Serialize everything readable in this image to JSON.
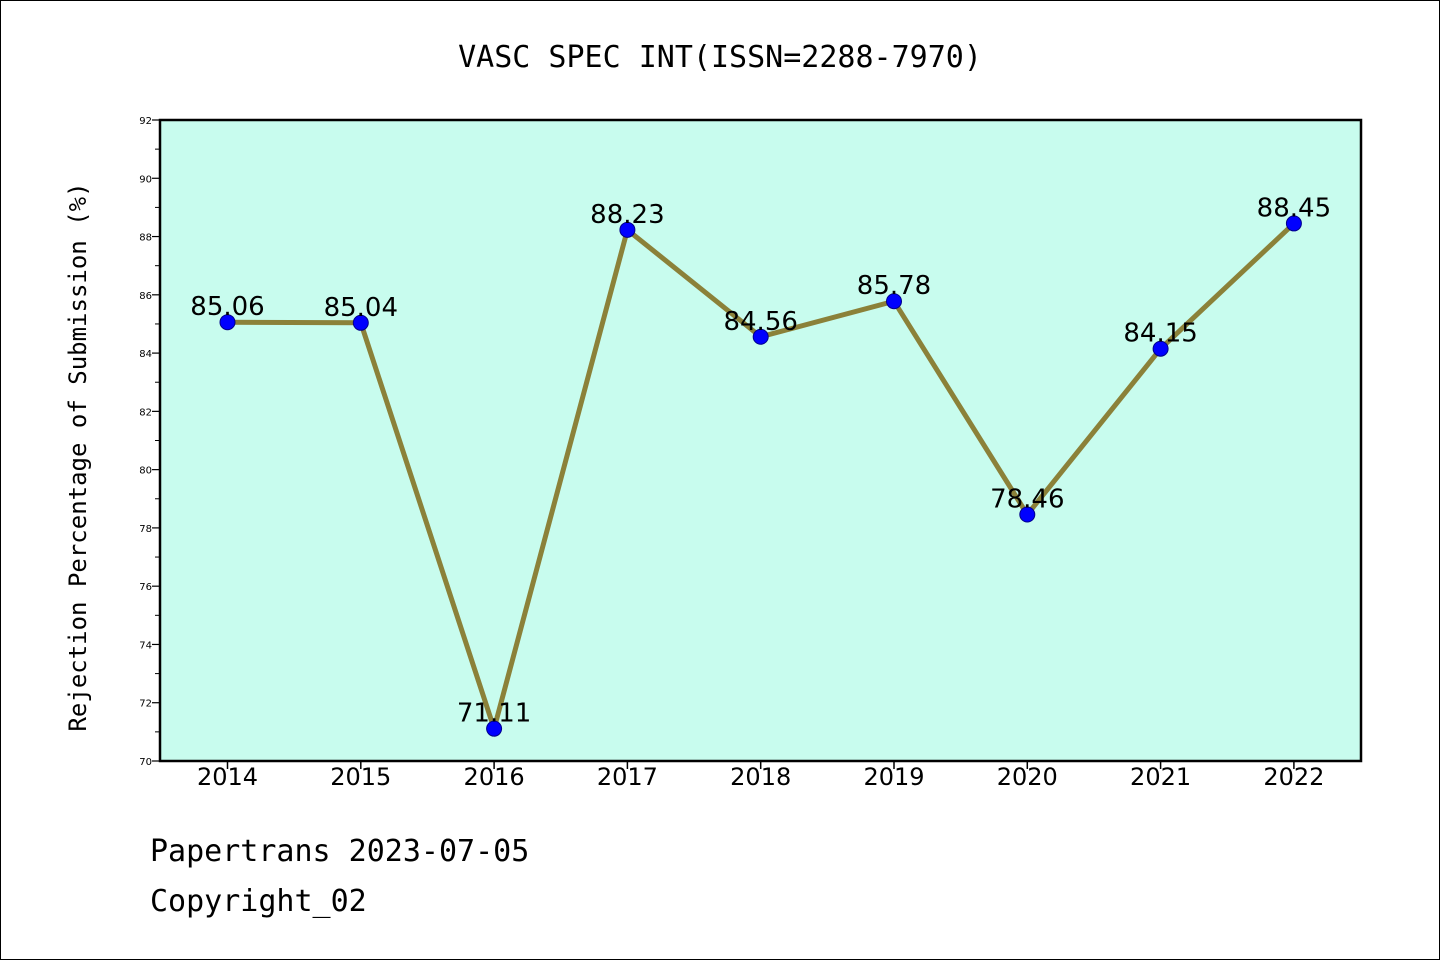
{
  "footer": {
    "line1": "Papertrans 2023-07-05",
    "line2": "Copyright_02"
  },
  "colors": {
    "plot_background": "#c8fcee",
    "line": "#8b8139",
    "marker": "#0000ff",
    "marker_edge": "#00008b",
    "axis": "#000000"
  },
  "chart_data": {
    "type": "line",
    "title": "VASC SPEC INT(ISSN=2288-7970)",
    "xlabel": "",
    "ylabel": "Rejection Percentage of Submission (%)",
    "categories": [
      "2014",
      "2015",
      "2016",
      "2017",
      "2018",
      "2019",
      "2020",
      "2021",
      "2022"
    ],
    "series": [
      {
        "values": [
          85.06,
          85.04,
          71.11,
          88.23,
          84.56,
          85.78,
          78.46,
          84.15,
          88.45
        ],
        "labels": [
          "85.06",
          "85.04",
          "71.11",
          "88.23",
          "84.56",
          "85.78",
          "78.46",
          "84.15",
          "88.45"
        ]
      }
    ],
    "ylim": [
      70,
      92
    ],
    "yticks": [
      70,
      72,
      74,
      76,
      78,
      80,
      82,
      84,
      86,
      88,
      90,
      92
    ],
    "ytick_labels": [
      "70",
      "72",
      "74",
      "76",
      "78",
      "80",
      "82",
      "84",
      "86",
      "88",
      "90",
      "92"
    ],
    "grid": false,
    "legend": "none"
  }
}
